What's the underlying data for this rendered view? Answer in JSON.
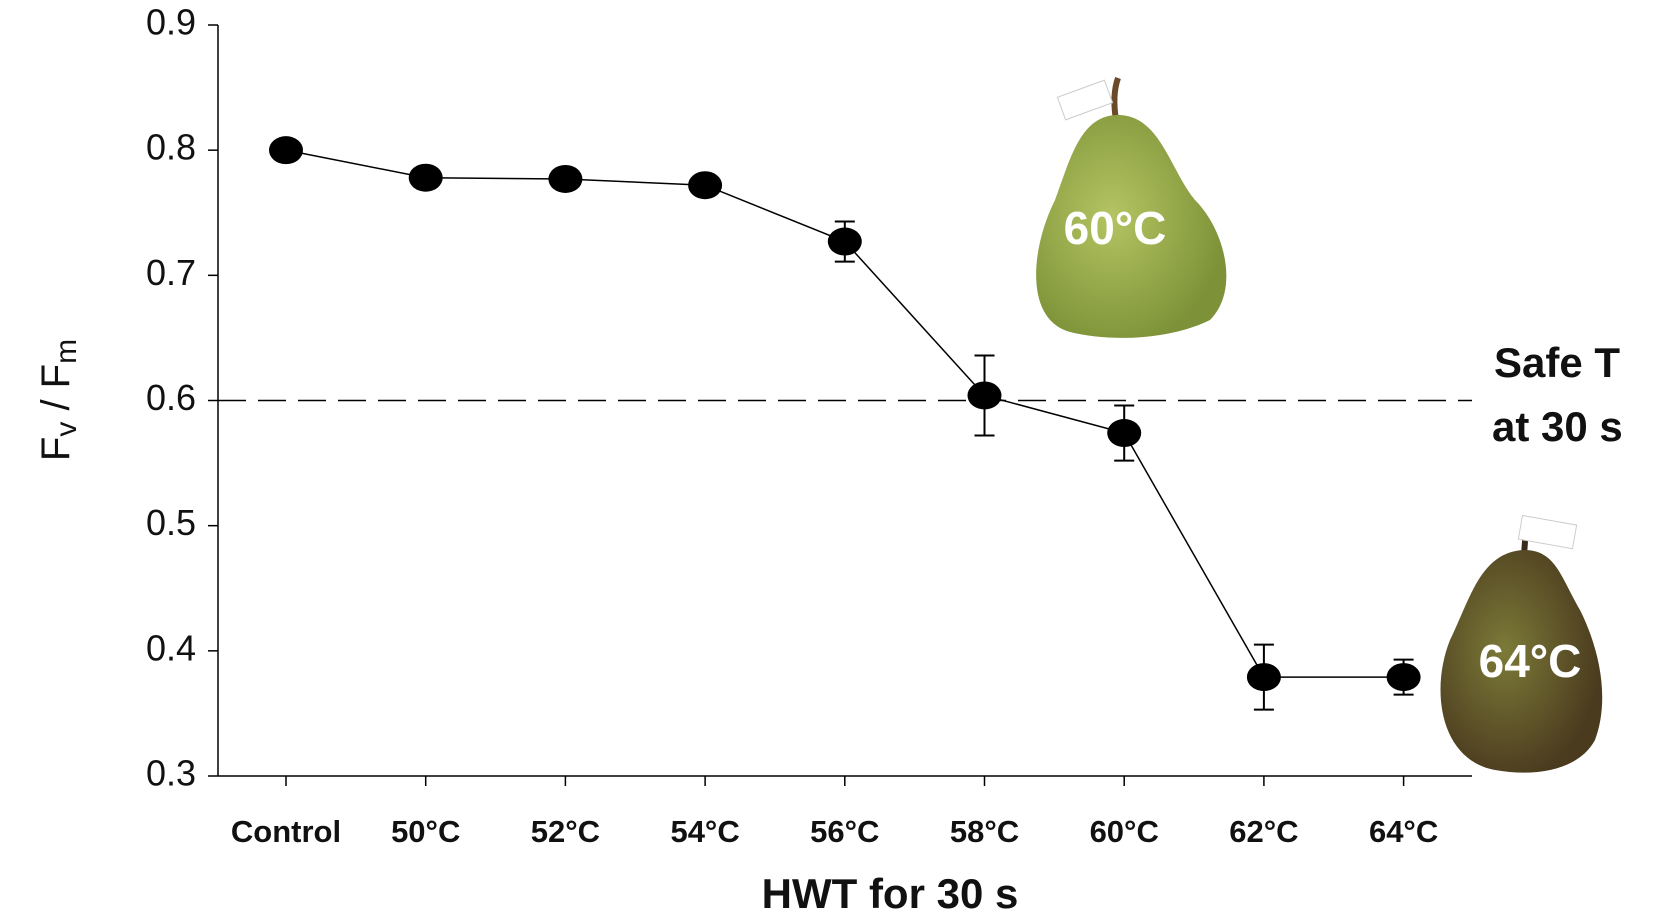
{
  "chart_data": {
    "type": "line",
    "y_label_parts": [
      "F",
      "v",
      " / F",
      "m"
    ],
    "x_label": "HWT for 30 s",
    "categories": [
      "Control",
      "50°C",
      "52°C",
      "54°C",
      "56°C",
      "58°C",
      "60°C",
      "62°C",
      "64°C"
    ],
    "series": [
      {
        "color": "#000000",
        "values": [
          0.8,
          0.778,
          0.777,
          0.772,
          0.727,
          0.604,
          0.574,
          0.379,
          0.379
        ],
        "errors": [
          0.003,
          0.008,
          0.003,
          0.003,
          0.016,
          0.032,
          0.022,
          0.026,
          0.014
        ]
      }
    ],
    "ylim": [
      0.3,
      0.9
    ],
    "yticks": [
      0.3,
      0.4,
      0.5,
      0.6,
      0.7,
      0.8,
      0.9
    ],
    "reference_line": 0.6,
    "annotation_lines": [
      "Safe T",
      "at 30 s"
    ],
    "pear_labels": [
      "60°C",
      "64°C"
    ]
  }
}
